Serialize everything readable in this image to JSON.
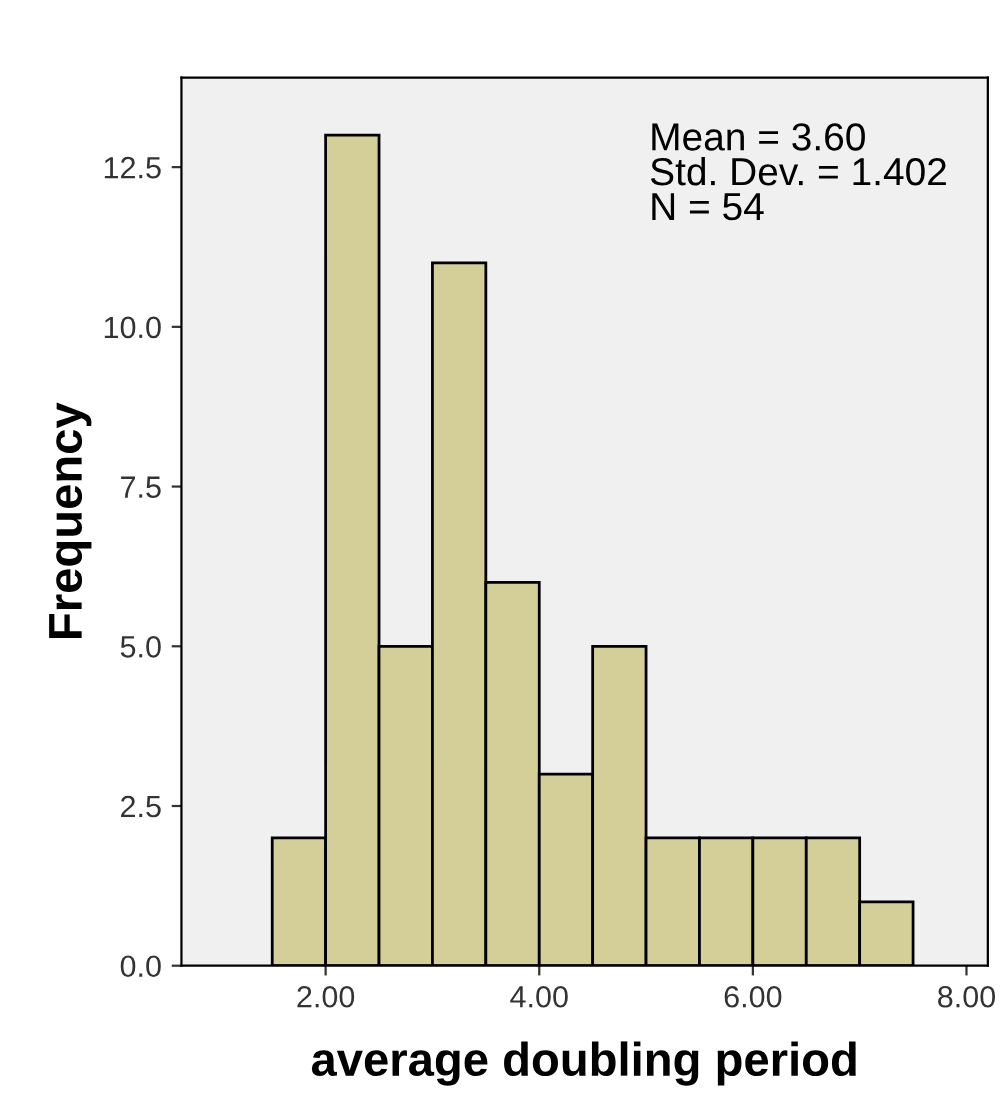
{
  "chart_data": {
    "type": "histogram",
    "xlabel": "average doubling period",
    "ylabel": "Frequency",
    "bins": [
      1.5,
      2.0,
      2.5,
      3.0,
      3.5,
      4.0,
      4.5,
      5.0,
      5.5,
      6.0,
      6.5,
      7.0,
      7.5
    ],
    "values": [
      2,
      13,
      5,
      11,
      6,
      3,
      5,
      2,
      2,
      2,
      2,
      1
    ],
    "color": "#d4cf98",
    "xlim": [
      0.65,
      8.2
    ],
    "ylim": [
      0,
      13.9
    ],
    "xticks": [
      {
        "value": 2,
        "label": "2.00"
      },
      {
        "value": 4,
        "label": "4.00"
      },
      {
        "value": 6,
        "label": "6.00"
      },
      {
        "value": 8,
        "label": "8.00"
      }
    ],
    "yticks": [
      {
        "value": 0,
        "label": "0.0"
      },
      {
        "value": 2.5,
        "label": "2.5"
      },
      {
        "value": 5,
        "label": "5.0"
      },
      {
        "value": 7.5,
        "label": "7.5"
      },
      {
        "value": 10,
        "label": "10.0"
      },
      {
        "value": 12.5,
        "label": "12.5"
      }
    ],
    "grid": false,
    "legend": false,
    "annotations": [
      "Mean = 3.60\nStd. Dev. = 1.402\nN = 54"
    ]
  }
}
